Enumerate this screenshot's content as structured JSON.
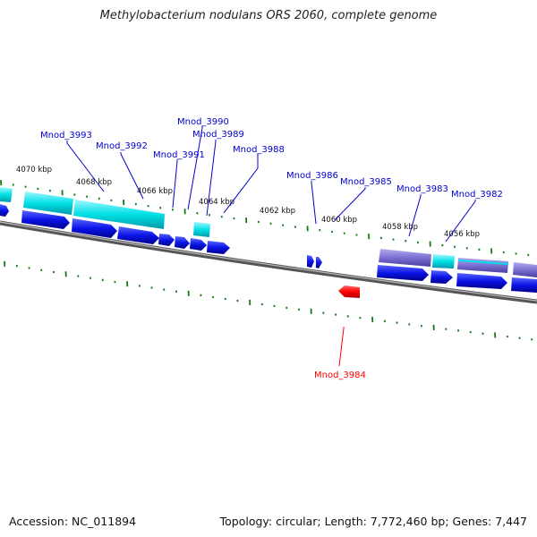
{
  "title": "Methylobacterium nodulans ORS 2060, complete genome",
  "footer": {
    "accession": "Accession: NC_011894",
    "topology": "Topology: circular; Length: 7,772,460 bp; Genes: 7,447"
  },
  "scale_labels": [
    "4070 kbp",
    "4068 kbp",
    "4066 kbp",
    "4064 kbp",
    "4062 kbp",
    "4060 kbp",
    "4058 kbp",
    "4056 kbp"
  ],
  "genes": [
    {
      "name": "Mnod_3993",
      "color": "#0000cc"
    },
    {
      "name": "Mnod_3992",
      "color": "#0000cc"
    },
    {
      "name": "Mnod_3991",
      "color": "#0000cc"
    },
    {
      "name": "Mnod_3990",
      "color": "#0000cc"
    },
    {
      "name": "Mnod_3989",
      "color": "#0000cc"
    },
    {
      "name": "Mnod_3988",
      "color": "#0000cc"
    },
    {
      "name": "Mnod_3986",
      "color": "#0000cc"
    },
    {
      "name": "Mnod_3985",
      "color": "#0000cc"
    },
    {
      "name": "Mnod_3983",
      "color": "#0000cc"
    },
    {
      "name": "Mnod_3982",
      "color": "#0000cc"
    },
    {
      "name": "Mnod_3984",
      "color": "#ff0000"
    }
  ],
  "colors": {
    "cds_forward": "#0b14e6",
    "feature_cyan": "#00e0e6",
    "feature_purple": "#7b6fd0",
    "cds_reverse_highlight": "#ff0000",
    "backbone": "#777777",
    "tick": "#157a15"
  }
}
